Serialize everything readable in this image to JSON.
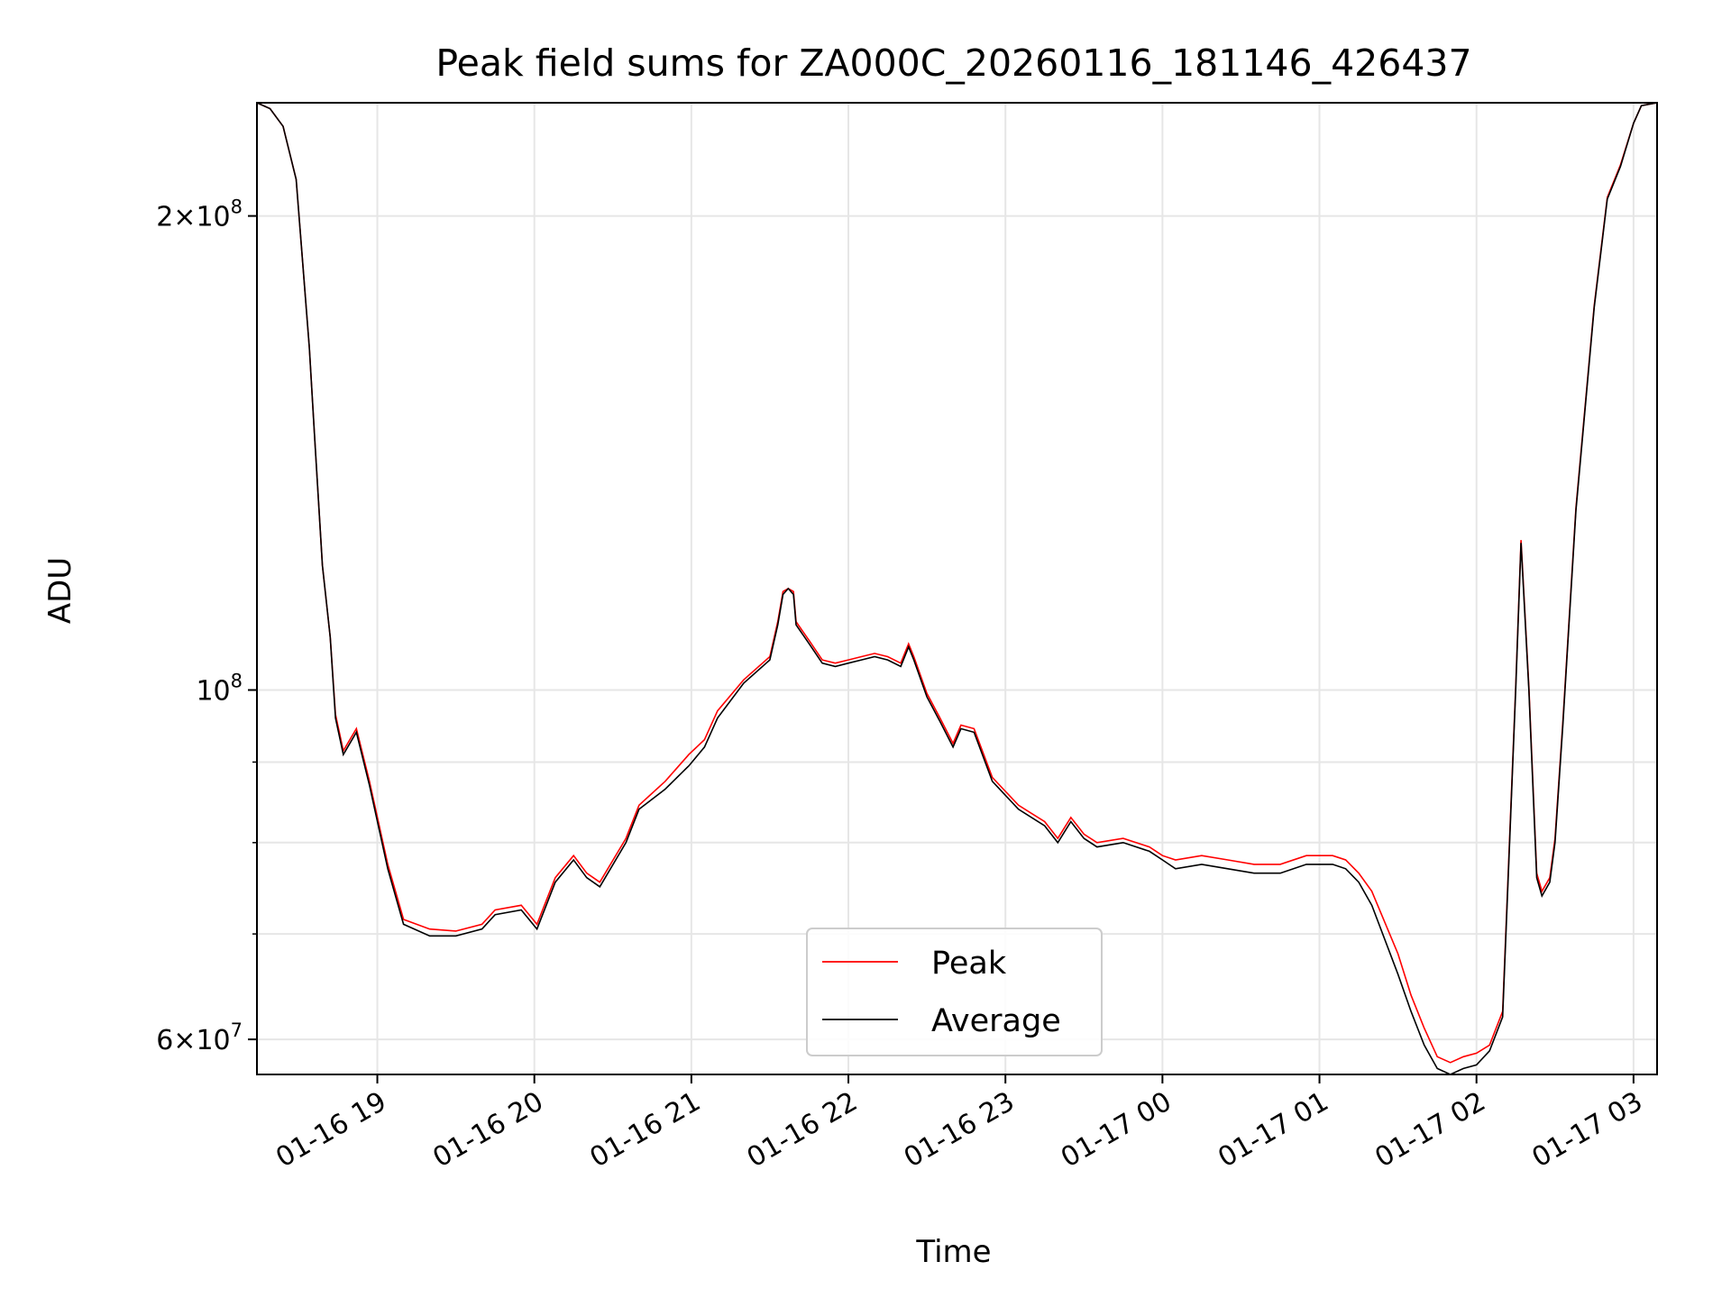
{
  "chart_data": {
    "type": "line",
    "title": "Peak field sums for ZA000C_20260116_181146_426437",
    "xlabel": "Time",
    "ylabel": "ADU",
    "yscale": "log",
    "ylim": [
      57000000,
      236000000
    ],
    "xlim": [
      "2026-01-16T18:14",
      "2026-01-17T03:09"
    ],
    "grid": true,
    "legend_position": "lower center",
    "x_ticks": [
      {
        "t": "2026-01-16T19:00",
        "label": "01-16 19"
      },
      {
        "t": "2026-01-16T20:00",
        "label": "01-16 20"
      },
      {
        "t": "2026-01-16T21:00",
        "label": "01-16 21"
      },
      {
        "t": "2026-01-16T22:00",
        "label": "01-16 22"
      },
      {
        "t": "2026-01-16T23:00",
        "label": "01-16 23"
      },
      {
        "t": "2026-01-17T00:00",
        "label": "01-17 00"
      },
      {
        "t": "2026-01-17T01:00",
        "label": "01-17 01"
      },
      {
        "t": "2026-01-17T02:00",
        "label": "01-17 02"
      },
      {
        "t": "2026-01-17T03:00",
        "label": "01-17 03"
      }
    ],
    "y_ticks": [
      {
        "value": 60000000,
        "mantissa": "6",
        "exp": "7"
      },
      {
        "value": 100000000,
        "mantissa": "",
        "exp": "8"
      },
      {
        "value": 200000000,
        "mantissa": "2",
        "exp": "8"
      }
    ],
    "y_minor_gridlines": [
      70000000,
      80000000,
      90000000
    ],
    "series": [
      {
        "name": "Average",
        "color": "#000000",
        "x": [
          "2026-01-16T18:14",
          "2026-01-16T18:19",
          "2026-01-16T18:24",
          "2026-01-16T18:29",
          "2026-01-16T18:34",
          "2026-01-16T18:36",
          "2026-01-16T18:39",
          "2026-01-16T18:42",
          "2026-01-16T18:44",
          "2026-01-16T18:47",
          "2026-01-16T18:52",
          "2026-01-16T18:57",
          "2026-01-16T19:04",
          "2026-01-16T19:10",
          "2026-01-16T19:20",
          "2026-01-16T19:30",
          "2026-01-16T19:40",
          "2026-01-16T19:45",
          "2026-01-16T19:55",
          "2026-01-16T20:01",
          "2026-01-16T20:08",
          "2026-01-16T20:15",
          "2026-01-16T20:20",
          "2026-01-16T20:25",
          "2026-01-16T20:35",
          "2026-01-16T20:40",
          "2026-01-16T20:50",
          "2026-01-16T20:59",
          "2026-01-16T21:05",
          "2026-01-16T21:10",
          "2026-01-16T21:20",
          "2026-01-16T21:30",
          "2026-01-16T21:33",
          "2026-01-16T21:35",
          "2026-01-16T21:37",
          "2026-01-16T21:39",
          "2026-01-16T21:40",
          "2026-01-16T21:45",
          "2026-01-16T21:50",
          "2026-01-16T21:55",
          "2026-01-16T22:00",
          "2026-01-16T22:05",
          "2026-01-16T22:10",
          "2026-01-16T22:15",
          "2026-01-16T22:20",
          "2026-01-16T22:22",
          "2026-01-16T22:23",
          "2026-01-16T22:25",
          "2026-01-16T22:30",
          "2026-01-16T22:35",
          "2026-01-16T22:40",
          "2026-01-16T22:43",
          "2026-01-16T22:48",
          "2026-01-16T22:55",
          "2026-01-16T23:05",
          "2026-01-16T23:15",
          "2026-01-16T23:20",
          "2026-01-16T23:25",
          "2026-01-16T23:30",
          "2026-01-16T23:35",
          "2026-01-16T23:45",
          "2026-01-16T23:55",
          "2026-01-17T00:00",
          "2026-01-17T00:05",
          "2026-01-17T00:15",
          "2026-01-17T00:25",
          "2026-01-17T00:35",
          "2026-01-17T00:45",
          "2026-01-17T00:55",
          "2026-01-17T01:05",
          "2026-01-17T01:10",
          "2026-01-17T01:15",
          "2026-01-17T01:20",
          "2026-01-17T01:30",
          "2026-01-17T01:35",
          "2026-01-17T01:40",
          "2026-01-17T01:45",
          "2026-01-17T01:50",
          "2026-01-17T01:55",
          "2026-01-17T02:00",
          "2026-01-17T02:05",
          "2026-01-17T02:10",
          "2026-01-17T02:15",
          "2026-01-17T02:17",
          "2026-01-17T02:20",
          "2026-01-17T02:23",
          "2026-01-17T02:25",
          "2026-01-17T02:28",
          "2026-01-17T02:30",
          "2026-01-17T02:33",
          "2026-01-17T02:38",
          "2026-01-17T02:45",
          "2026-01-17T02:50",
          "2026-01-17T02:55",
          "2026-01-17T03:00",
          "2026-01-17T03:03",
          "2026-01-17T03:09"
        ],
        "y": [
          236000000,
          234000000,
          228000000,
          211000000,
          165000000,
          145000000,
          120000000,
          108000000,
          96000000,
          91000000,
          94000000,
          87000000,
          77000000,
          71000000,
          69800000,
          69800000,
          70500000,
          72000000,
          72500000,
          70500000,
          75500000,
          78000000,
          76000000,
          75000000,
          80000000,
          84000000,
          86500000,
          89500000,
          92000000,
          96000000,
          101000000,
          104500000,
          110000000,
          115000000,
          116000000,
          115000000,
          110000000,
          107000000,
          104000000,
          103500000,
          104000000,
          104500000,
          105000000,
          104500000,
          103500000,
          105500000,
          106500000,
          104500000,
          99000000,
          95500000,
          92000000,
          94500000,
          94000000,
          87500000,
          84000000,
          82000000,
          80000000,
          82500000,
          80500000,
          79500000,
          80000000,
          79000000,
          78000000,
          77000000,
          77500000,
          77000000,
          76500000,
          76500000,
          77500000,
          77500000,
          77000000,
          75500000,
          73000000,
          66000000,
          62500000,
          59500000,
          57500000,
          57000000,
          57500000,
          57800000,
          59000000,
          62000000,
          100000000,
          124000000,
          100000000,
          76000000,
          74000000,
          75500000,
          80000000,
          95000000,
          130000000,
          175000000,
          205000000,
          215000000,
          229000000,
          235000000,
          236000000
        ]
      },
      {
        "name": "Peak",
        "color": "#ff0000",
        "x": [
          "2026-01-16T18:14",
          "2026-01-16T18:19",
          "2026-01-16T18:24",
          "2026-01-16T18:29",
          "2026-01-16T18:34",
          "2026-01-16T18:36",
          "2026-01-16T18:39",
          "2026-01-16T18:42",
          "2026-01-16T18:44",
          "2026-01-16T18:47",
          "2026-01-16T18:52",
          "2026-01-16T18:57",
          "2026-01-16T19:04",
          "2026-01-16T19:10",
          "2026-01-16T19:20",
          "2026-01-16T19:30",
          "2026-01-16T19:40",
          "2026-01-16T19:45",
          "2026-01-16T19:55",
          "2026-01-16T20:01",
          "2026-01-16T20:08",
          "2026-01-16T20:15",
          "2026-01-16T20:20",
          "2026-01-16T20:25",
          "2026-01-16T20:35",
          "2026-01-16T20:40",
          "2026-01-16T20:50",
          "2026-01-16T20:59",
          "2026-01-16T21:05",
          "2026-01-16T21:10",
          "2026-01-16T21:20",
          "2026-01-16T21:30",
          "2026-01-16T21:33",
          "2026-01-16T21:35",
          "2026-01-16T21:37",
          "2026-01-16T21:39",
          "2026-01-16T21:40",
          "2026-01-16T21:45",
          "2026-01-16T21:50",
          "2026-01-16T21:55",
          "2026-01-16T22:00",
          "2026-01-16T22:05",
          "2026-01-16T22:10",
          "2026-01-16T22:15",
          "2026-01-16T22:20",
          "2026-01-16T22:22",
          "2026-01-16T22:23",
          "2026-01-16T22:25",
          "2026-01-16T22:30",
          "2026-01-16T22:35",
          "2026-01-16T22:40",
          "2026-01-16T22:43",
          "2026-01-16T22:48",
          "2026-01-16T22:55",
          "2026-01-16T23:05",
          "2026-01-16T23:15",
          "2026-01-16T23:20",
          "2026-01-16T23:25",
          "2026-01-16T23:30",
          "2026-01-16T23:35",
          "2026-01-16T23:45",
          "2026-01-16T23:55",
          "2026-01-17T00:00",
          "2026-01-17T00:05",
          "2026-01-17T00:15",
          "2026-01-17T00:25",
          "2026-01-17T00:35",
          "2026-01-17T00:45",
          "2026-01-17T00:55",
          "2026-01-17T01:05",
          "2026-01-17T01:10",
          "2026-01-17T01:15",
          "2026-01-17T01:20",
          "2026-01-17T01:30",
          "2026-01-17T01:35",
          "2026-01-17T01:40",
          "2026-01-17T01:45",
          "2026-01-17T01:50",
          "2026-01-17T01:55",
          "2026-01-17T02:00",
          "2026-01-17T02:05",
          "2026-01-17T02:10",
          "2026-01-17T02:15",
          "2026-01-17T02:17",
          "2026-01-17T02:20",
          "2026-01-17T02:23",
          "2026-01-17T02:25",
          "2026-01-17T02:28",
          "2026-01-17T02:30",
          "2026-01-17T02:33",
          "2026-01-17T02:38",
          "2026-01-17T02:45",
          "2026-01-17T02:50",
          "2026-01-17T02:55",
          "2026-01-17T03:00",
          "2026-01-17T03:03",
          "2026-01-17T03:09"
        ],
        "y": [
          236000000,
          234000000,
          228000000,
          211000000,
          165000000,
          145000000,
          120000000,
          108000000,
          96500000,
          91500000,
          94500000,
          87500000,
          77500000,
          71500000,
          70500000,
          70300000,
          71000000,
          72500000,
          73000000,
          71000000,
          76000000,
          78500000,
          76500000,
          75500000,
          80500000,
          84500000,
          87500000,
          91000000,
          93000000,
          97000000,
          101500000,
          105000000,
          110500000,
          115500000,
          116000000,
          115500000,
          110500000,
          107500000,
          104500000,
          104000000,
          104500000,
          105000000,
          105500000,
          105000000,
          104000000,
          106000000,
          107000000,
          105000000,
          99500000,
          96000000,
          92500000,
          95000000,
          94500000,
          88000000,
          84500000,
          82500000,
          80500000,
          83000000,
          81000000,
          80000000,
          80500000,
          79500000,
          78500000,
          78000000,
          78500000,
          78000000,
          77500000,
          77500000,
          78500000,
          78500000,
          78000000,
          76500000,
          74500000,
          68000000,
          64000000,
          61000000,
          58500000,
          58000000,
          58500000,
          58800000,
          59500000,
          62500000,
          100500000,
          124500000,
          100500000,
          76500000,
          74500000,
          76000000,
          80500000,
          95500000,
          130500000,
          175500000,
          205500000,
          215500000,
          229000000,
          235000000,
          236000000
        ]
      }
    ]
  }
}
